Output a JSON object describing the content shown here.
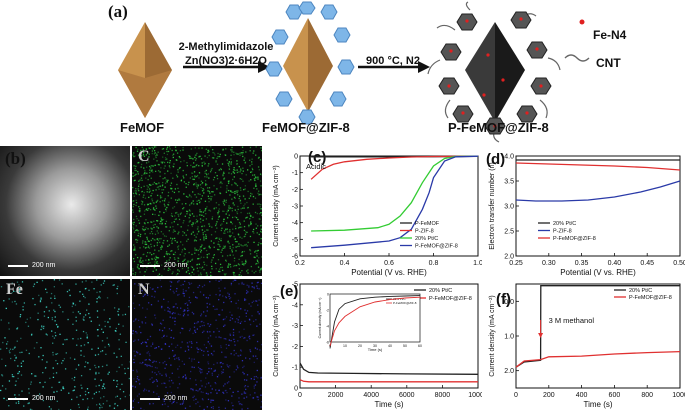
{
  "panel_a": {
    "label": "(a)",
    "reagent_line1": "2-Methylimidazole",
    "reagent_line2": "Zn(NO3)2·6H2O",
    "step2": "900 °C, N2",
    "legend_fen4": "Fe-N4",
    "legend_cnt": "CNT",
    "cap1": "FeMOF",
    "cap2": "FeMOF@ZIF-8",
    "cap3": "P-FeMOF@ZIF-8"
  },
  "panel_b": {
    "label": "(b)",
    "maps": [
      {
        "element": "",
        "scale": "200 nm",
        "color": "#cfcfcf"
      },
      {
        "element": "C",
        "scale": "200 nm",
        "color": "#2ecc40"
      },
      {
        "element": "Fe",
        "scale": "200 nm",
        "color": "#40e0d0"
      },
      {
        "element": "N",
        "scale": "200 nm",
        "color": "#3333cc"
      }
    ]
  },
  "chart_data": [
    {
      "id": "c",
      "label": "(c)",
      "type": "line",
      "annotation": "Acidic",
      "xlabel": "Potential (V vs. RHE)",
      "ylabel": "Current density (mA cm⁻²)",
      "xlim": [
        0.2,
        1.0
      ],
      "ylim": [
        -6,
        0
      ],
      "xticks": [
        "0.2",
        "0.4",
        "0.6",
        "0.8",
        "1.0"
      ],
      "yticks": [
        "0",
        "-1",
        "-2",
        "-3",
        "-4",
        "-5",
        "-6"
      ],
      "legend_position": "bottom-right",
      "series": [
        {
          "name": "P-FeMOF",
          "color": "#222222",
          "x": [
            0.25,
            0.4,
            0.6,
            0.8,
            1.0
          ],
          "y": [
            -0.05,
            -0.05,
            -0.05,
            -0.04,
            -0.02
          ]
        },
        {
          "name": "P-ZIF-8",
          "color": "#e03030",
          "x": [
            0.25,
            0.3,
            0.35,
            0.4,
            0.5,
            0.6,
            0.7,
            0.8,
            1.0
          ],
          "y": [
            -1.4,
            -0.8,
            -0.5,
            -0.35,
            -0.2,
            -0.12,
            -0.06,
            -0.03,
            -0.01
          ]
        },
        {
          "name": "20% Pt/C",
          "color": "#33cc33",
          "x": [
            0.25,
            0.4,
            0.55,
            0.6,
            0.65,
            0.7,
            0.75,
            0.8,
            0.85,
            0.9,
            1.0
          ],
          "y": [
            -4.5,
            -4.45,
            -4.3,
            -4.1,
            -3.6,
            -2.8,
            -1.6,
            -0.6,
            -0.15,
            -0.03,
            -0.01
          ]
        },
        {
          "name": "P-FeMOF@ZIF-8",
          "color": "#2a3aa8",
          "x": [
            0.25,
            0.4,
            0.6,
            0.65,
            0.7,
            0.75,
            0.78,
            0.8,
            0.85,
            0.9,
            1.0
          ],
          "y": [
            -5.5,
            -5.35,
            -5.1,
            -4.9,
            -4.4,
            -3.2,
            -2.2,
            -1.3,
            -0.3,
            -0.05,
            -0.01
          ]
        }
      ]
    },
    {
      "id": "d",
      "label": "(d)",
      "type": "line",
      "xlabel": "Potential (V vs. RHE)",
      "ylabel": "Electron transfer number (n)",
      "xlim": [
        0.25,
        0.5
      ],
      "ylim": [
        2.0,
        4.0
      ],
      "xticks": [
        "0.25",
        "0.30",
        "0.35",
        "0.40",
        "0.45",
        "0.50"
      ],
      "yticks": [
        "4.0",
        "3.5",
        "3.0",
        "2.5",
        "2.0"
      ],
      "legend_position": "bottom-left",
      "series": [
        {
          "name": "20% Pt/C",
          "color": "#222222",
          "x": [
            0.25,
            0.3,
            0.35,
            0.4,
            0.45,
            0.5
          ],
          "y": [
            3.92,
            3.92,
            3.92,
            3.92,
            3.92,
            3.92
          ]
        },
        {
          "name": "P-ZIF-8",
          "color": "#2a3aa8",
          "x": [
            0.25,
            0.28,
            0.32,
            0.36,
            0.4,
            0.44,
            0.47,
            0.5
          ],
          "y": [
            3.12,
            3.1,
            3.1,
            3.12,
            3.18,
            3.28,
            3.38,
            3.5
          ]
        },
        {
          "name": "P-FeMOF@ZIF-8",
          "color": "#e03030",
          "x": [
            0.25,
            0.3,
            0.35,
            0.4,
            0.45,
            0.5
          ],
          "y": [
            3.86,
            3.84,
            3.82,
            3.8,
            3.77,
            3.72
          ]
        }
      ]
    },
    {
      "id": "e",
      "label": "(e)",
      "type": "line",
      "xlabel": "Time (s)",
      "ylabel": "Current density (mA cm⁻²)",
      "xlim": [
        0,
        10000
      ],
      "ylim": [
        -5,
        0
      ],
      "xticks": [
        "0",
        "2000",
        "4000",
        "6000",
        "8000",
        "10000"
      ],
      "yticks": [
        "-5",
        "-4",
        "-3",
        "-2",
        "-1",
        "0"
      ],
      "legend_position": "top-right",
      "series": [
        {
          "name": "20% Pt/C",
          "color": "#222222",
          "x": [
            0,
            200,
            500,
            1000,
            3000,
            6000,
            10000
          ],
          "y": [
            -1.2,
            -0.9,
            -0.75,
            -0.72,
            -0.7,
            -0.68,
            -0.66
          ]
        },
        {
          "name": "P-FeMOF@ZIF-8",
          "color": "#e03030",
          "x": [
            0,
            200,
            500,
            1000,
            3000,
            6000,
            10000
          ],
          "y": [
            -0.4,
            -0.32,
            -0.3,
            -0.3,
            -0.3,
            -0.3,
            -0.3
          ]
        }
      ],
      "inset": {
        "xlabel": "Time (s)",
        "ylabel": "Current density (mA cm⁻²)",
        "xlim": [
          0,
          60
        ],
        "ylim": [
          -6,
          0
        ],
        "xticks": [
          "0",
          "10",
          "20",
          "30",
          "40",
          "50",
          "60"
        ],
        "yticks": [
          "-6",
          "-4",
          "-2",
          "0"
        ],
        "series": [
          {
            "name": "20% Pt/C",
            "color": "#222222",
            "x": [
              0,
              3,
              6,
              10,
              20,
              30,
              40,
              50,
              60
            ],
            "y": [
              -6.8,
              -3.5,
              -1.9,
              -1.2,
              -0.6,
              -0.4,
              -0.3,
              -0.25,
              -0.2
            ]
          },
          {
            "name": "P-FeMOF@ZIF-8",
            "color": "#e03030",
            "x": [
              0,
              3,
              6,
              10,
              20,
              30,
              40,
              50,
              60
            ],
            "y": [
              -6.5,
              -4.6,
              -3.6,
              -2.8,
              -1.6,
              -1.0,
              -0.7,
              -0.5,
              -0.4
            ]
          }
        ]
      }
    },
    {
      "id": "f",
      "label": "(f)",
      "type": "line",
      "xlabel": "Time (s)",
      "ylabel": "Current density (mA cm⁻²)",
      "annotation": "3 M methanol",
      "xlim": [
        0,
        1000
      ],
      "ylim": [
        -0.5,
        2.5
      ],
      "xticks": [
        "0",
        "200",
        "400",
        "600",
        "800",
        "1000"
      ],
      "yticks": [
        "0.0",
        "1.0",
        "2.0"
      ],
      "legend_position": "top-right",
      "series": [
        {
          "name": "20% Pt/C",
          "color": "#222222",
          "x": [
            0,
            50,
            150,
            151,
            160,
            200,
            1000
          ],
          "y": [
            1.9,
            1.75,
            1.7,
            -0.45,
            -0.45,
            -0.45,
            -0.45
          ]
        },
        {
          "name": "P-FeMOF@ZIF-8",
          "color": "#e03030",
          "x": [
            0,
            50,
            150,
            200,
            400,
            600,
            800,
            1000
          ],
          "y": [
            1.9,
            1.72,
            1.68,
            1.6,
            1.58,
            1.52,
            1.48,
            1.45
          ]
        }
      ]
    }
  ]
}
